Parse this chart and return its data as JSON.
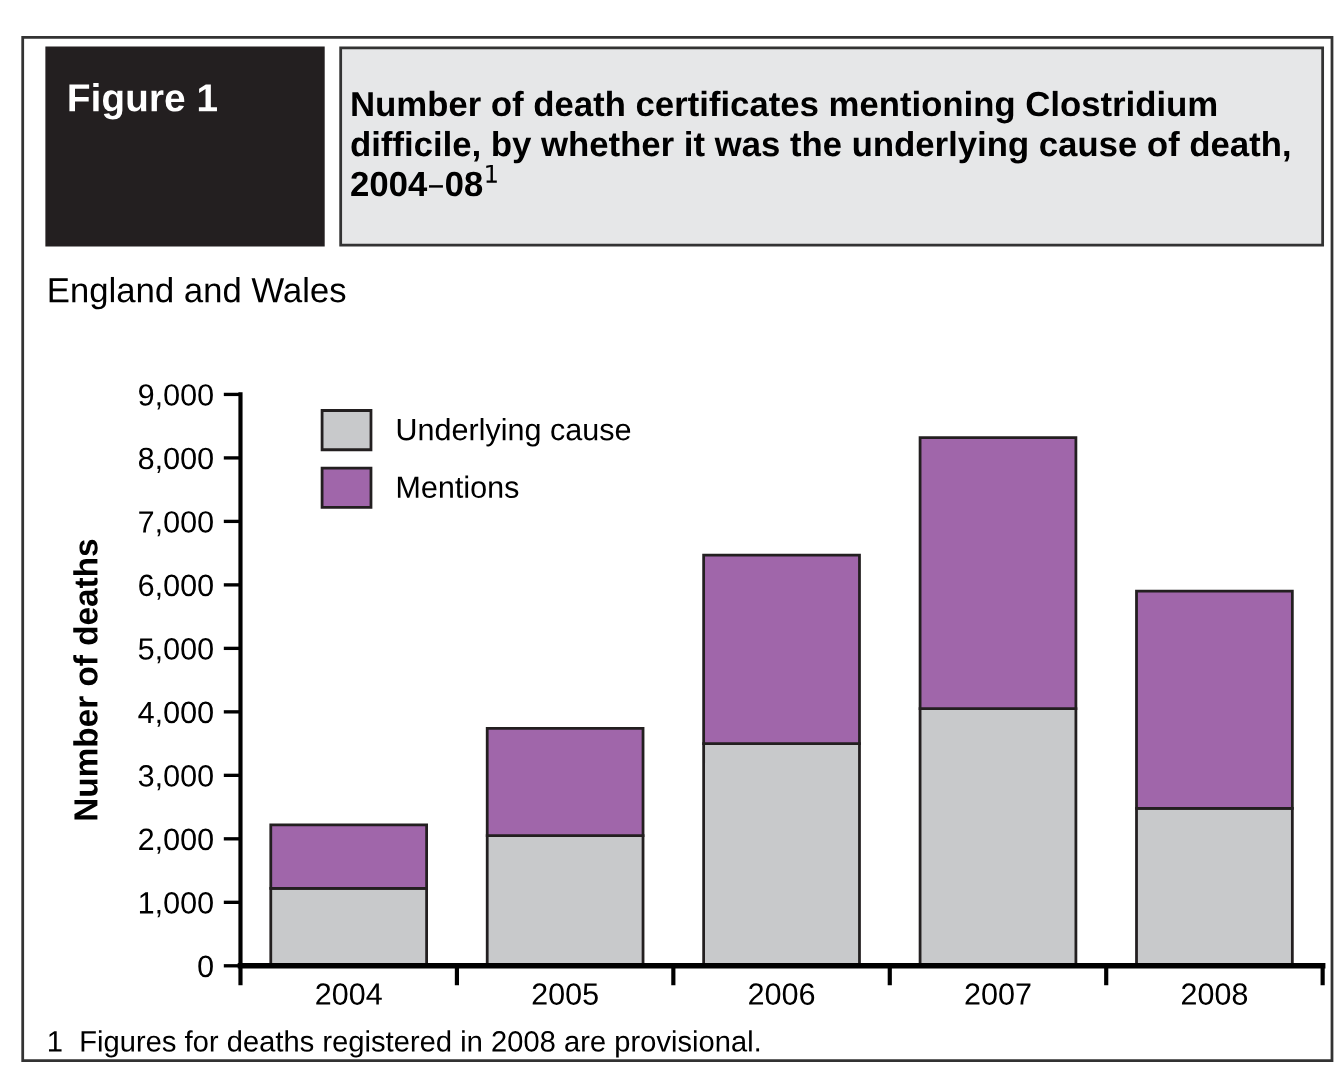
{
  "chart_data": {
    "type": "bar",
    "stacked": true,
    "title": "Number of death certificates mentioning Clostridium difficile, by whether it was the underlying cause of death, 2004–08$^{1}$",
    "subtitle": "England and Wales",
    "ylabel": "Number of deaths",
    "categories": [
      "2004",
      "2005",
      "2006",
      "2007",
      "2008"
    ],
    "series": [
      {
        "name": "Underlying cause",
        "color": "#c8c9cb",
        "values": [
          1220,
          2050,
          3500,
          4050,
          2480
        ]
      },
      {
        "name": "Mentions",
        "color": "#a066aa",
        "values": [
          1000,
          1690,
          2970,
          4270,
          3420
        ]
      }
    ],
    "ylim": [
      0,
      9000
    ],
    "yticks": [
      {
        "value": 0,
        "label": "0"
      },
      {
        "value": 1000,
        "label": "1,000"
      },
      {
        "value": 2000,
        "label": "2,000"
      },
      {
        "value": 3000,
        "label": "3,000"
      },
      {
        "value": 4000,
        "label": "4,000"
      },
      {
        "value": 5000,
        "label": "5,000"
      },
      {
        "value": 6000,
        "label": "6,000"
      },
      {
        "value": 7000,
        "label": "7,000"
      },
      {
        "value": 8000,
        "label": "8,000"
      },
      {
        "value": 9000,
        "label": "9,000"
      }
    ],
    "grid": false,
    "legend": "top left",
    "annotations": [
      "Figure 1",
      "1  Figures for deaths registered in 2008 are provisional."
    ]
  }
}
